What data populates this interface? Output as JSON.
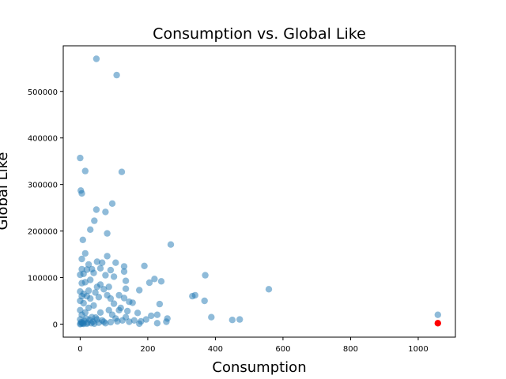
{
  "chart_data": {
    "type": "scatter",
    "title": "Consumption vs. Global Like",
    "xlabel": "Consumption",
    "ylabel": "Global Like",
    "xlim": [
      -50,
      1110
    ],
    "ylim": [
      -28000,
      598000
    ],
    "xticks": [
      0,
      200,
      400,
      600,
      800,
      1000
    ],
    "xtick_labels": [
      "0",
      "200",
      "400",
      "600",
      "800",
      "1000"
    ],
    "yticks": [
      0,
      100000,
      200000,
      300000,
      400000,
      500000
    ],
    "ytick_labels": [
      "0",
      "100000",
      "200000",
      "300000",
      "400000",
      "500000"
    ],
    "grid": false,
    "series": [
      {
        "color": "#1f77b4",
        "alpha": 0.5,
        "points": [
          [
            48,
            570000
          ],
          [
            108,
            535000
          ],
          [
            0,
            357000
          ],
          [
            15,
            329000
          ],
          [
            123,
            327000
          ],
          [
            2,
            287000
          ],
          [
            5,
            281000
          ],
          [
            95,
            259000
          ],
          [
            48,
            246000
          ],
          [
            75,
            241000
          ],
          [
            42,
            222000
          ],
          [
            30,
            203000
          ],
          [
            80,
            195000
          ],
          [
            8,
            181000
          ],
          [
            268,
            171000
          ],
          [
            15,
            152000
          ],
          [
            80,
            146000
          ],
          [
            5,
            140000
          ],
          [
            50,
            134000
          ],
          [
            65,
            132000
          ],
          [
            105,
            132000
          ],
          [
            25,
            128000
          ],
          [
            190,
            125000
          ],
          [
            130,
            124000
          ],
          [
            5,
            118000
          ],
          [
            20,
            117000
          ],
          [
            35,
            118000
          ],
          [
            60,
            120000
          ],
          [
            90,
            116000
          ],
          [
            130,
            113000
          ],
          [
            0,
            106000
          ],
          [
            10,
            108000
          ],
          [
            40,
            110000
          ],
          [
            75,
            105000
          ],
          [
            100,
            102000
          ],
          [
            370,
            105000
          ],
          [
            220,
            97000
          ],
          [
            240,
            92000
          ],
          [
            205,
            89000
          ],
          [
            135,
            93000
          ],
          [
            5,
            88000
          ],
          [
            15,
            90000
          ],
          [
            30,
            95000
          ],
          [
            60,
            85000
          ],
          [
            85,
            80000
          ],
          [
            70,
            75000
          ],
          [
            135,
            76000
          ],
          [
            175,
            73000
          ],
          [
            558,
            75000
          ],
          [
            0,
            70000
          ],
          [
            10,
            65000
          ],
          [
            25,
            72000
          ],
          [
            45,
            68000
          ],
          [
            80,
            62000
          ],
          [
            115,
            62000
          ],
          [
            130,
            56000
          ],
          [
            340,
            62000
          ],
          [
            332,
            60000
          ],
          [
            368,
            50000
          ],
          [
            145,
            48000
          ],
          [
            155,
            46000
          ],
          [
            0,
            50000
          ],
          [
            10,
            45000
          ],
          [
            30,
            55000
          ],
          [
            55,
            58000
          ],
          [
            100,
            44000
          ],
          [
            235,
            43000
          ],
          [
            120,
            35000
          ],
          [
            140,
            28000
          ],
          [
            170,
            24000
          ],
          [
            228,
            20000
          ],
          [
            210,
            18000
          ],
          [
            195,
            10000
          ],
          [
            180,
            6000
          ],
          [
            175,
            1000
          ],
          [
            228,
            2000
          ],
          [
            255,
            5000
          ],
          [
            258,
            12000
          ],
          [
            388,
            15000
          ],
          [
            450,
            9000
          ],
          [
            472,
            10000
          ],
          [
            0,
            30000
          ],
          [
            5,
            20000
          ],
          [
            15,
            25000
          ],
          [
            25,
            35000
          ],
          [
            35,
            15000
          ],
          [
            50,
            10000
          ],
          [
            60,
            25000
          ],
          [
            70,
            5000
          ],
          [
            85,
            30000
          ],
          [
            95,
            20000
          ],
          [
            105,
            12000
          ],
          [
            115,
            30000
          ],
          [
            125,
            8000
          ],
          [
            135,
            15000
          ],
          [
            145,
            5000
          ],
          [
            0,
            10000
          ],
          [
            3,
            4000
          ],
          [
            8,
            1500
          ],
          [
            12,
            7000
          ],
          [
            18,
            12000
          ],
          [
            22,
            3000
          ],
          [
            28,
            9000
          ],
          [
            33,
            2000
          ],
          [
            38,
            5000
          ],
          [
            42,
            1000
          ],
          [
            46,
            14000
          ],
          [
            55,
            3000
          ],
          [
            65,
            8000
          ],
          [
            75,
            2000
          ],
          [
            90,
            4000
          ],
          [
            110,
            6000
          ],
          [
            160,
            8000
          ],
          [
            0,
            0
          ],
          [
            2,
            1000
          ],
          [
            6,
            2500
          ],
          [
            10,
            500
          ],
          [
            20,
            1000
          ],
          [
            40,
            40000
          ],
          [
            20,
            60000
          ],
          [
            90,
            55000
          ],
          [
            50,
            80000
          ],
          [
            5,
            60000
          ],
          [
            1058,
            20000
          ]
        ]
      },
      {
        "color": "#ff0000",
        "alpha": 1,
        "points": [
          [
            1058,
            2000
          ]
        ]
      }
    ]
  }
}
